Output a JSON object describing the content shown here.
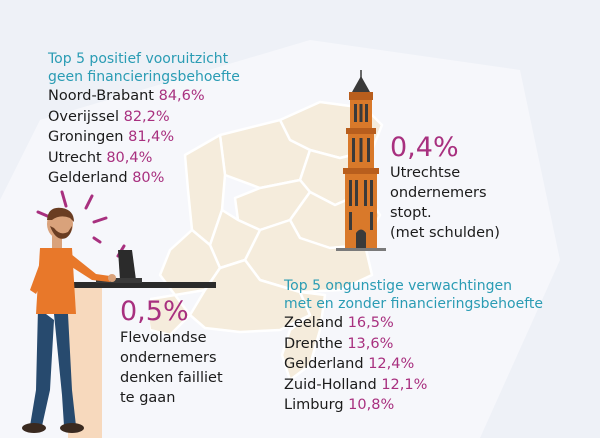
{
  "top_positive": {
    "title_line1": "Top 5 positief vooruitzicht",
    "title_line2": "geen financieringsbehoefte",
    "items": [
      {
        "name": "Noord-Brabant",
        "value": "84,6%"
      },
      {
        "name": "Overijssel",
        "value": "82,2%"
      },
      {
        "name": "Groningen",
        "value": "81,4%"
      },
      {
        "name": "Utrecht",
        "value": "80,4%"
      },
      {
        "name": "Gelderland",
        "value": "80%"
      }
    ]
  },
  "utrecht_stat": {
    "value": "0,4%",
    "lines": [
      "Utrechtse",
      "ondernemers",
      "stopt.",
      "(met schulden)"
    ]
  },
  "top_negative": {
    "title_line1": "Top 5 ongunstige verwachtingen",
    "title_line2": "met en zonder financieringsbehoefte",
    "items": [
      {
        "name": "Zeeland",
        "value": "16,5%"
      },
      {
        "name": "Drenthe",
        "value": "13,6%"
      },
      {
        "name": "Gelderland",
        "value": "12,4%"
      },
      {
        "name": "Zuid-Holland",
        "value": "12,1%"
      },
      {
        "name": "Limburg",
        "value": "10,8%"
      }
    ]
  },
  "flevo_stat": {
    "value": "0,5%",
    "lines": [
      "Flevolandse",
      "ondernemers",
      "denken failliet",
      "te gaan"
    ]
  },
  "colors": {
    "accent_teal": "#2a9cb4",
    "accent_purple": "#a8307f",
    "map_fill": "#f5ecdc",
    "tower_orange": "#d9792a",
    "shirt_orange": "#e8782a"
  },
  "icons": [
    "netherlands-map",
    "dom-tower-icon",
    "stressed-man-illustration",
    "laptop-icon",
    "desk-icon"
  ]
}
